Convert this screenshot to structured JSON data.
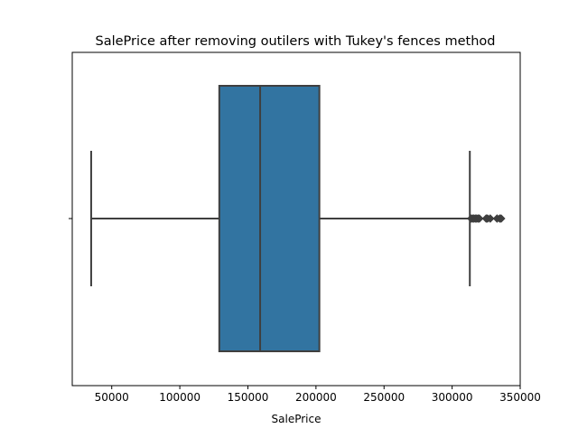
{
  "chart_data": {
    "type": "box",
    "title": "SalePrice after removing outilers with Tukey's  fences method",
    "xlabel": "SalePrice",
    "ylabel": "",
    "orientation": "horizontal",
    "xlim": [
      21000,
      350000
    ],
    "xticks": [
      50000,
      100000,
      150000,
      200000,
      250000,
      300000,
      350000
    ],
    "xtick_labels": [
      "50000",
      "100000",
      "150000",
      "200000",
      "250000",
      "300000",
      "350000"
    ],
    "grid": false,
    "box": {
      "whisker_low": 34900,
      "q1": 129000,
      "median": 159000,
      "q3": 202500,
      "whisker_high": 313000,
      "outliers": [
        314000,
        315000,
        316000,
        317000,
        318000,
        319000,
        320000,
        325000,
        326000,
        328000,
        333000,
        335000,
        336000
      ]
    },
    "colors": {
      "box_fill": "#3274a1",
      "line": "#3f3f3f",
      "outlier_fill": "#3f3f3f"
    }
  }
}
